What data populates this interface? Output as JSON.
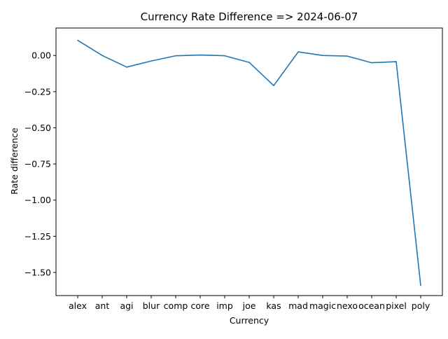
{
  "chart_data": {
    "type": "line",
    "title": "Currency Rate Difference => 2024-06-07",
    "xlabel": "Currency",
    "ylabel": "Rate difference",
    "categories": [
      "alex",
      "ant",
      "agi",
      "blur",
      "comp",
      "core",
      "imp",
      "joe",
      "kas",
      "mad",
      "magic",
      "nexo",
      "ocean",
      "pixel",
      "poly"
    ],
    "series": [
      {
        "values": [
          0.105,
          0.0,
          -0.08,
          -0.038,
          -0.002,
          0.003,
          -0.002,
          -0.048,
          -0.208,
          0.025,
          0.0,
          -0.004,
          -0.05,
          -0.043,
          -1.59
        ],
        "color": "#1f77b4"
      }
    ],
    "ylim": [
      -1.66,
      0.19
    ],
    "yticks": [
      "0.00",
      "−0.25",
      "−0.50",
      "−0.75",
      "−1.00",
      "−1.25",
      "−1.50"
    ],
    "ytick_values": [
      0.0,
      -0.25,
      -0.5,
      -0.75,
      -1.0,
      -1.25,
      -1.5
    ],
    "grid": false,
    "legend": "none"
  }
}
